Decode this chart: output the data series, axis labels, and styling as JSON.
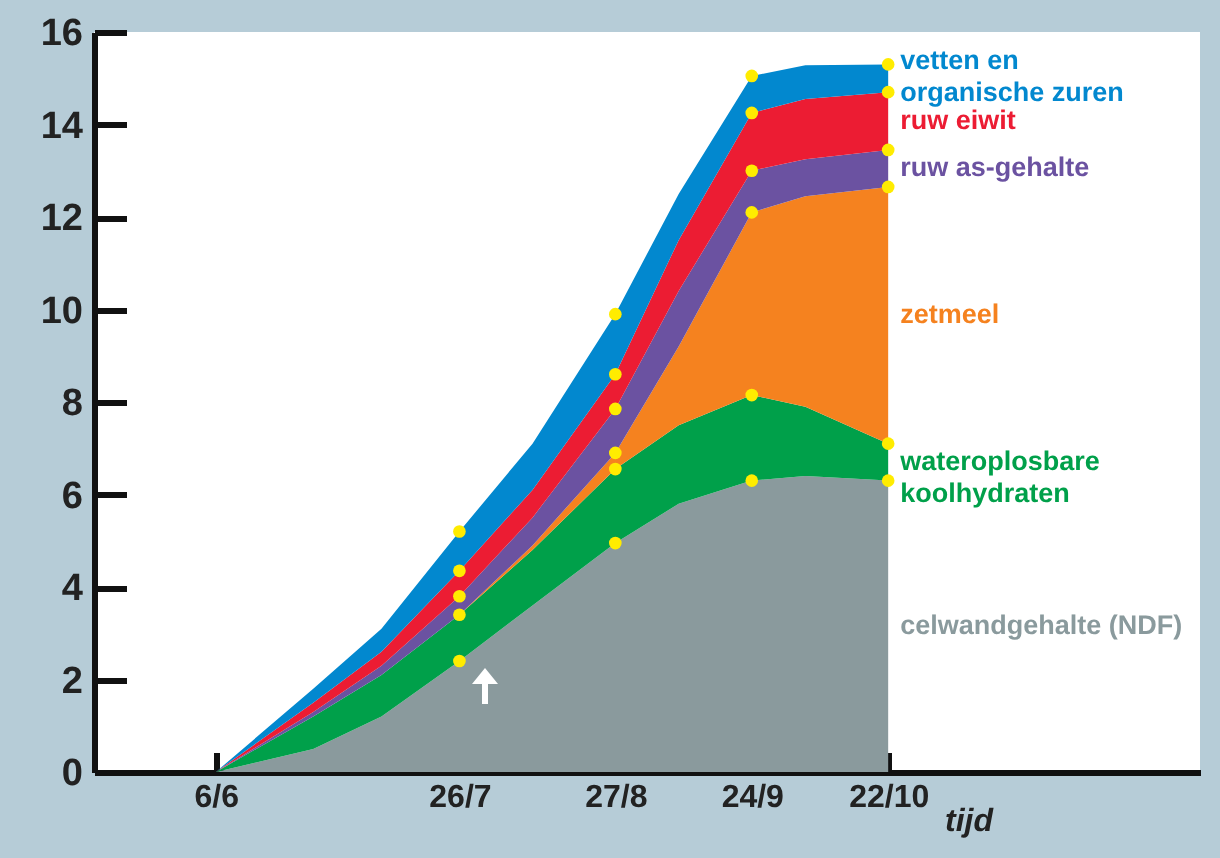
{
  "chart_data": {
    "type": "area",
    "stacked": true,
    "xlabel": "tijd",
    "grid": false,
    "x": [
      "--06-06",
      "--06-26",
      "--07-10",
      "--07-26",
      "--08-10",
      "--08-27",
      "--09-09",
      "--09-24",
      "--10-05",
      "--10-22"
    ],
    "xlim": [
      "--05-12",
      "--12-25"
    ],
    "xticks": [
      {
        "value": "--06-06",
        "label": "6/6"
      },
      {
        "value": "--07-26",
        "label": "26/7"
      },
      {
        "value": "--08-27",
        "label": "27/8"
      },
      {
        "value": "--09-24",
        "label": "24/9"
      },
      {
        "value": "--10-22",
        "label": "22/10"
      }
    ],
    "ylim": [
      0,
      16
    ],
    "yticks": [
      0,
      2,
      4,
      6,
      8,
      10,
      12,
      14,
      16
    ],
    "series": [
      {
        "name": "celwandgehalte (NDF)",
        "color": "#8a9a9d",
        "values": [
          0,
          0.5,
          1.2,
          2.4,
          3.6,
          4.95,
          5.8,
          6.3,
          6.4,
          6.3
        ]
      },
      {
        "name": "wateroplosbare\nkoolhydraten",
        "color": "#00a04a",
        "values": [
          0,
          0.7,
          0.9,
          1.0,
          1.2,
          1.6,
          1.7,
          1.85,
          1.5,
          0.8
        ]
      },
      {
        "name": "zetmeel",
        "color": "#f5821f",
        "values": [
          0,
          0,
          0,
          0,
          0.1,
          0.35,
          1.7,
          3.95,
          4.55,
          5.55
        ]
      },
      {
        "name": "ruw as-gehalte",
        "color": "#6b52a1",
        "values": [
          0,
          0.1,
          0.2,
          0.4,
          0.6,
          0.95,
          1.2,
          0.9,
          0.8,
          0.8
        ]
      },
      {
        "name": "ruw eiwit",
        "color": "#ec1c33",
        "values": [
          0,
          0.2,
          0.3,
          0.55,
          0.6,
          0.75,
          1.1,
          1.25,
          1.3,
          1.25
        ]
      },
      {
        "name": "vetten en\norganische zuren",
        "color": "#0288cf",
        "values": [
          0,
          0.3,
          0.5,
          0.85,
          1.0,
          1.3,
          1.0,
          0.8,
          0.73,
          0.6
        ]
      },
      {
        "type": "scatter",
        "marker": "circle",
        "color": "#ffec00",
        "x": [
          "--07-26",
          "--07-26",
          "--07-26",
          "--07-26",
          "--07-26",
          "--08-27",
          "--08-27",
          "--08-27",
          "--08-27",
          "--08-27",
          "--08-27",
          "--09-24",
          "--09-24",
          "--09-24",
          "--09-24",
          "--09-24",
          "--09-24",
          "--10-22",
          "--10-22",
          "--10-22",
          "--10-22",
          "--10-22",
          "--10-22"
        ],
        "values": [
          2.4,
          3.4,
          3.8,
          4.35,
          5.2,
          4.95,
          6.55,
          6.9,
          7.85,
          8.6,
          9.9,
          6.3,
          8.15,
          12.1,
          13.0,
          14.25,
          15.05,
          6.3,
          7.1,
          12.65,
          13.45,
          14.7,
          15.3
        ]
      }
    ]
  }
}
